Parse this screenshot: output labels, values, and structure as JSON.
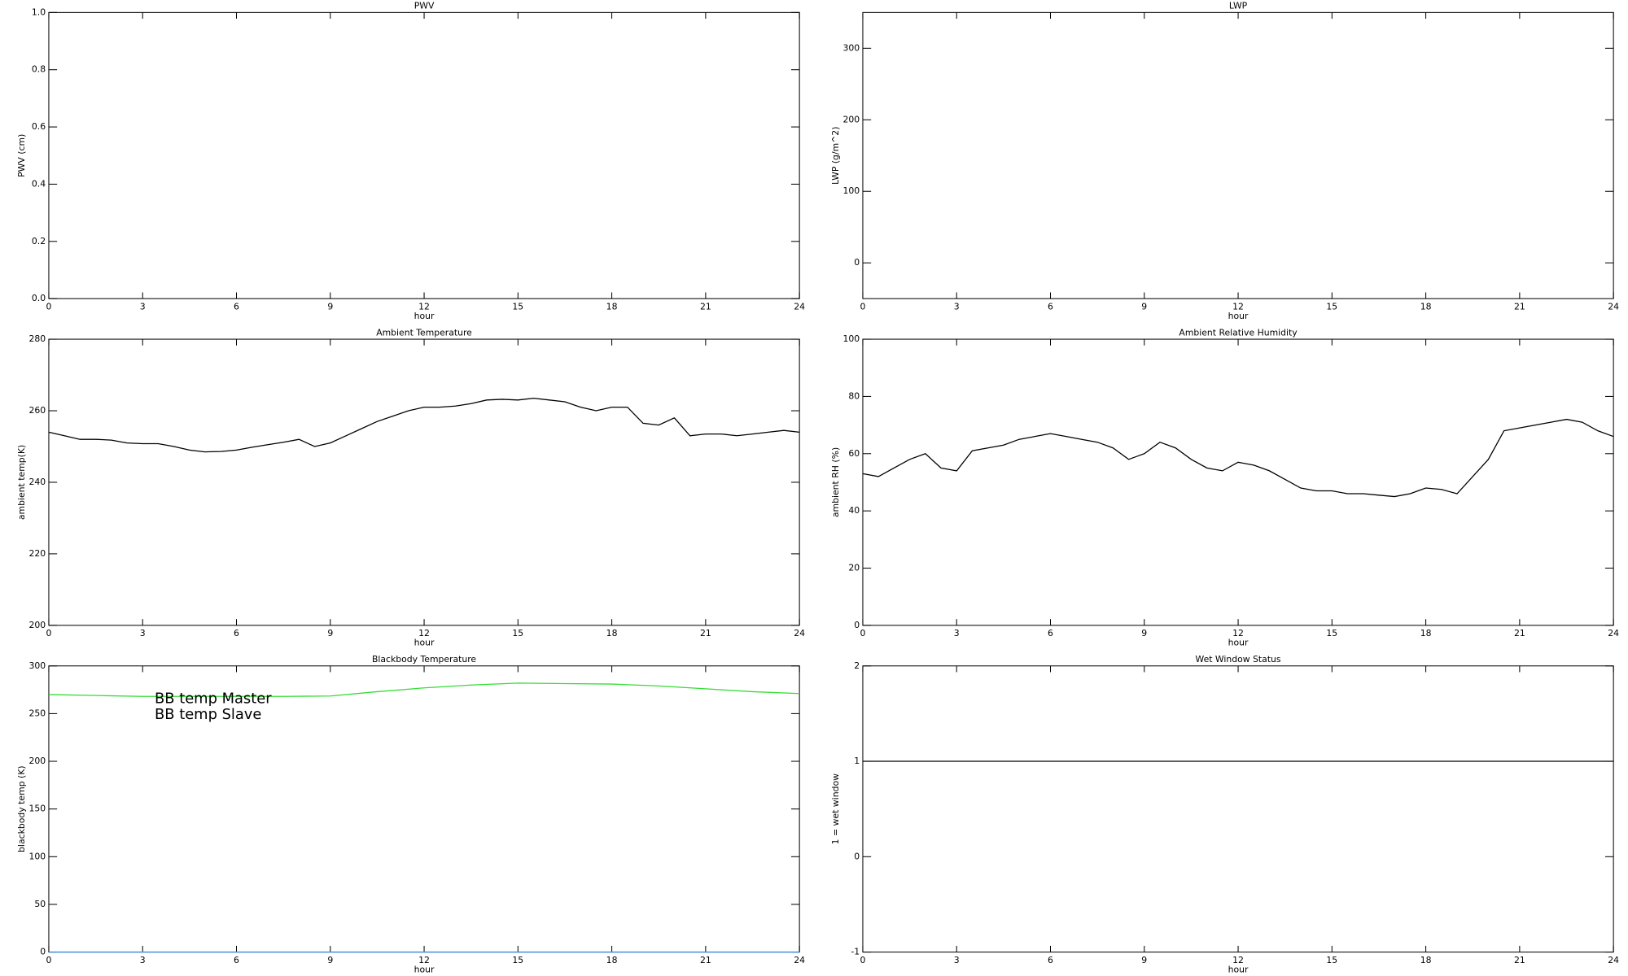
{
  "chart_data": [
    {
      "type": "line",
      "title": "PWV",
      "xlabel": "hour",
      "ylabel": "PWV (cm)",
      "xlim": [
        0,
        24
      ],
      "xticks": [
        0,
        3,
        6,
        9,
        12,
        15,
        18,
        21,
        24
      ],
      "ylim": [
        0,
        1
      ],
      "yticks": [
        {
          "value": 0,
          "label": "0.0"
        },
        {
          "value": 0.2,
          "label": "0.2"
        },
        {
          "value": 0.4,
          "label": "0.4"
        },
        {
          "value": 0.6,
          "label": "0.6"
        },
        {
          "value": 0.8,
          "label": "0.8"
        },
        {
          "value": 1,
          "label": "1.0"
        }
      ]
    },
    {
      "type": "line",
      "title": "LWP",
      "xlabel": "hour",
      "ylabel": "LWP (g/m^2)",
      "xlim": [
        0,
        24
      ],
      "xticks": [
        0,
        3,
        6,
        9,
        12,
        15,
        18,
        21,
        24
      ],
      "ylim": [
        -50,
        350
      ],
      "yticks": [
        0,
        100,
        200,
        300
      ]
    },
    {
      "type": "line",
      "title": "Ambient Temperature",
      "xlabel": "hour",
      "ylabel": "ambient temp(K)",
      "xlim": [
        0,
        24
      ],
      "xticks": [
        0,
        3,
        6,
        9,
        12,
        15,
        18,
        21,
        24
      ],
      "ylim": [
        200,
        280
      ],
      "yticks": [
        200,
        220,
        240,
        260,
        280
      ],
      "color": "#000000",
      "x": [
        0,
        0.5,
        1,
        1.5,
        2,
        2.5,
        3,
        3.5,
        4,
        4.5,
        5,
        5.5,
        6,
        6.5,
        7,
        7.5,
        8,
        8.5,
        9,
        9.5,
        10,
        10.5,
        11,
        11.5,
        12,
        12.5,
        13,
        13.5,
        14,
        14.5,
        15,
        15.5,
        16,
        16.5,
        17,
        17.5,
        18,
        18.5,
        19,
        19.5,
        20,
        20.5,
        21,
        21.5,
        22,
        22.5,
        23,
        23.5,
        24
      ],
      "values": [
        254,
        253,
        252,
        252,
        251.8,
        251,
        250.8,
        250.8,
        250,
        249,
        248.5,
        248.6,
        249,
        249.8,
        250.5,
        251.2,
        252,
        250,
        251,
        253,
        255,
        257,
        258.5,
        260,
        261,
        261,
        261.3,
        262,
        263,
        263.2,
        263,
        263.5,
        263,
        262.5,
        261,
        260,
        261,
        261,
        256.5,
        256,
        258,
        253,
        253.5,
        253.5,
        253,
        253.5,
        254,
        254.5,
        254
      ]
    },
    {
      "type": "line",
      "title": "Ambient Relative Humidity",
      "xlabel": "hour",
      "ylabel": "ambient RH (%)",
      "xlim": [
        0,
        24
      ],
      "xticks": [
        0,
        3,
        6,
        9,
        12,
        15,
        18,
        21,
        24
      ],
      "ylim": [
        0,
        100
      ],
      "yticks": [
        0,
        20,
        40,
        60,
        80,
        100
      ],
      "color": "#000000",
      "x": [
        0,
        0.5,
        1,
        1.5,
        2,
        2.5,
        3,
        3.5,
        4,
        4.5,
        5,
        5.5,
        6,
        6.5,
        7,
        7.5,
        8,
        8.5,
        9,
        9.5,
        10,
        10.5,
        11,
        11.5,
        12,
        12.5,
        13,
        13.5,
        14,
        14.5,
        15,
        15.5,
        16,
        16.5,
        17,
        17.5,
        18,
        18.5,
        19,
        19.5,
        20,
        20.5,
        21,
        21.5,
        22,
        22.5,
        23,
        23.5,
        24
      ],
      "values": [
        53,
        52,
        55,
        58,
        60,
        55,
        54,
        61,
        62,
        63,
        65,
        66,
        67,
        66,
        65,
        64,
        62,
        58,
        60,
        64,
        62,
        58,
        55,
        54,
        57,
        56,
        54,
        51,
        48,
        47,
        47,
        46,
        46,
        45.5,
        45,
        46,
        48,
        47.5,
        46,
        52,
        58,
        68,
        69,
        70,
        71,
        72,
        71,
        68,
        66
      ]
    },
    {
      "type": "line",
      "title": "Blackbody Temperature",
      "xlabel": "hour",
      "ylabel": "blackbody temp (K)",
      "xlim": [
        0,
        24
      ],
      "xticks": [
        0,
        3,
        6,
        9,
        12,
        15,
        18,
        21,
        24
      ],
      "ylim": [
        0,
        300
      ],
      "yticks": [
        0,
        50,
        100,
        150,
        200,
        250,
        300
      ],
      "legend": "upper left",
      "x": [
        0,
        1.5,
        3,
        4.5,
        6,
        7.5,
        9,
        10.5,
        12,
        13.5,
        15,
        16.5,
        18,
        19.5,
        21,
        22.5,
        24
      ],
      "series": [
        {
          "name": "BB temp Master",
          "color": "#3a8ee0",
          "values": [
            0,
            0,
            0,
            0,
            0,
            0,
            0,
            0,
            0,
            0,
            0,
            0,
            0,
            0,
            0,
            0,
            0
          ]
        },
        {
          "name": "BB temp Slave",
          "color": "#33dd33",
          "values": [
            270,
            269,
            268,
            268,
            268,
            268,
            268.5,
            273,
            277,
            280,
            282,
            281.5,
            281,
            279,
            276,
            273,
            271
          ]
        }
      ]
    },
    {
      "type": "line",
      "title": "Wet Window Status",
      "xlabel": "hour",
      "ylabel": "1 = wet window",
      "xlim": [
        0,
        24
      ],
      "xticks": [
        0,
        3,
        6,
        9,
        12,
        15,
        18,
        21,
        24
      ],
      "ylim": [
        -1,
        2
      ],
      "yticks": [
        -1,
        0,
        1,
        2
      ],
      "color": "#000000",
      "x": [
        0,
        24
      ],
      "values": [
        1,
        1
      ]
    }
  ]
}
